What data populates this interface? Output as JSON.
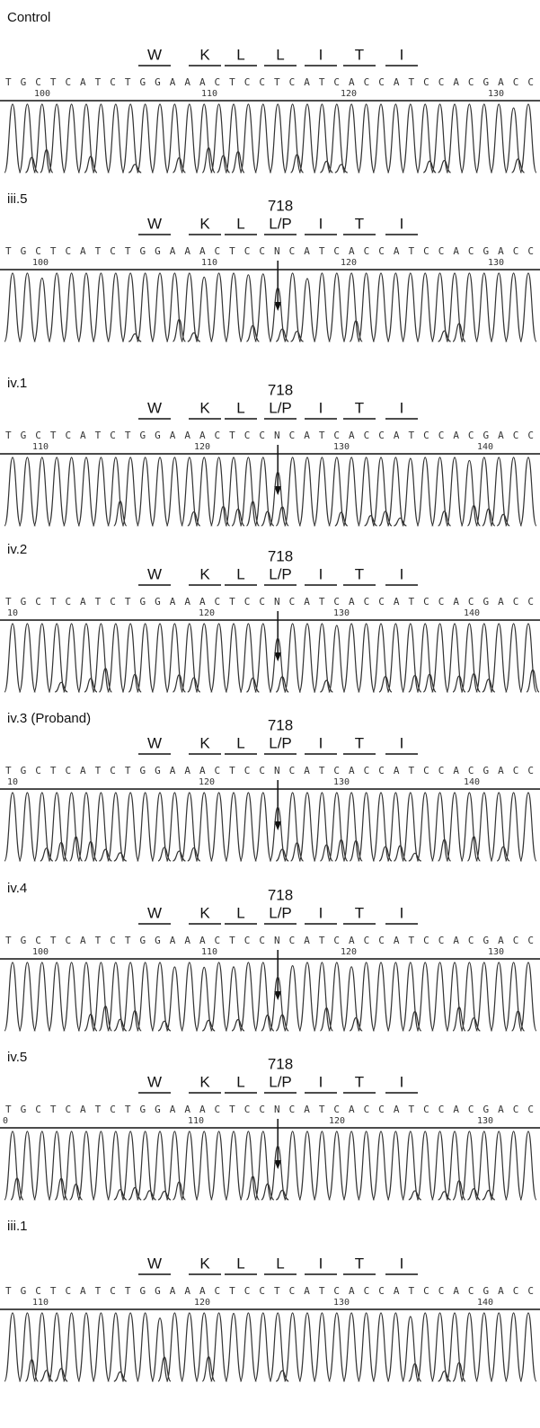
{
  "panels": [
    {
      "label": "Control",
      "residues": [
        "W",
        "K",
        "L",
        "L",
        "I",
        "T",
        "I"
      ],
      "sequence": "TGCTCATCTGGAAACTCCTCATCACCATCCACGACC",
      "positions": [
        "100",
        "110",
        "120",
        "130"
      ]
    },
    {
      "label": "iii.5",
      "marker": "718",
      "residues": [
        "W",
        "K",
        "L",
        "L/P",
        "I",
        "T",
        "I"
      ],
      "sequence": "TGCTCATCTGGAAACTCCNCATCACCATCCACGACC",
      "positions": [
        "100",
        "110",
        "120",
        "130"
      ]
    },
    {
      "label": "iv.1",
      "marker": "718",
      "residues": [
        "W",
        "K",
        "L",
        "L/P",
        "I",
        "T",
        "I"
      ],
      "sequence": "TGCTCATCTGGAAACTCCNCATCACCATCCACGACC",
      "positions": [
        "110",
        "120",
        "130",
        "140"
      ]
    },
    {
      "label": "iv.2",
      "marker": "718",
      "residues": [
        "W",
        "K",
        "L",
        "L/P",
        "I",
        "T",
        "I"
      ],
      "sequence": "TGCTCATCTGGAAACTCCNCATCACCATCCACGACC",
      "positions": [
        "10",
        "120",
        "130",
        "140"
      ]
    },
    {
      "label": "iv.3 (Proband)",
      "marker": "718",
      "residues": [
        "W",
        "K",
        "L",
        "L/P",
        "I",
        "T",
        "I"
      ],
      "sequence": "TGCTCATCTGGAAACTCCNCATCACCATCCACGACC",
      "positions": [
        "10",
        "120",
        "130",
        "140"
      ]
    },
    {
      "label": "iv.4",
      "marker": "718",
      "residues": [
        "W",
        "K",
        "L",
        "L/P",
        "I",
        "T",
        "I"
      ],
      "sequence": "TGCTCATCTGGAAACTCCNCATCACCATCCACGACC",
      "positions": [
        "100",
        "110",
        "120",
        "130"
      ]
    },
    {
      "label": "iv.5",
      "marker": "718",
      "residues": [
        "W",
        "K",
        "L",
        "L/P",
        "I",
        "T",
        "I"
      ],
      "sequence": "TGCTCATCTGGAAACTCCNCATCACCATCCACGACC",
      "positions": [
        "0",
        "110",
        "120",
        "130"
      ]
    },
    {
      "label": "iii.1",
      "residues": [
        "W",
        "K",
        "L",
        "L",
        "I",
        "T",
        "I"
      ],
      "sequence": "TGCTCATCTGGAAACTCCTCATCACCATCCACGACC",
      "positions": [
        "110",
        "120",
        "130",
        "140"
      ]
    }
  ]
}
